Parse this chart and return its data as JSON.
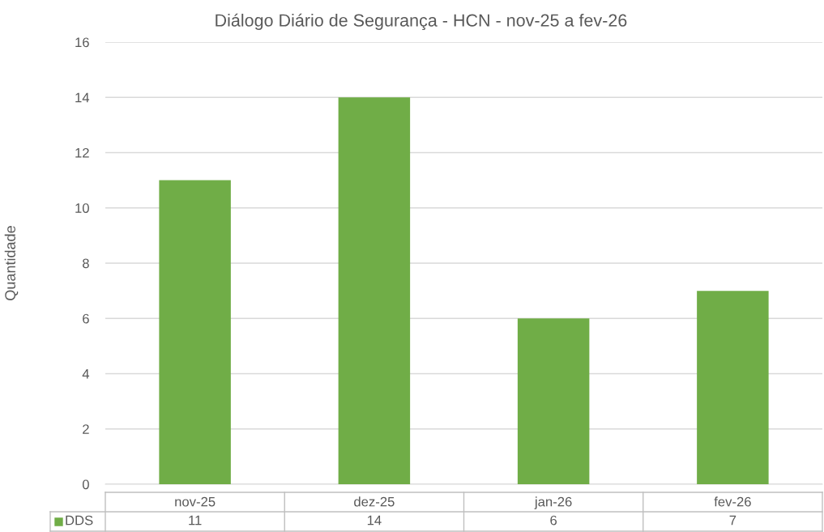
{
  "chart_data": {
    "type": "bar",
    "title": "Diálogo Diário de Segurança - HCN - nov-25 a fev-26",
    "ylabel": "Quantidade",
    "categories": [
      "nov-25",
      "dez-25",
      "jan-26",
      "fev-26"
    ],
    "series": [
      {
        "name": "DDS",
        "color": "#70ad47",
        "values": [
          11,
          14,
          6,
          7
        ]
      }
    ],
    "ylim": [
      0,
      16
    ],
    "yticks": [
      0,
      2,
      4,
      6,
      8,
      10,
      12,
      14,
      16
    ],
    "grid": "y",
    "legend": "bottom",
    "data_labels": true
  }
}
